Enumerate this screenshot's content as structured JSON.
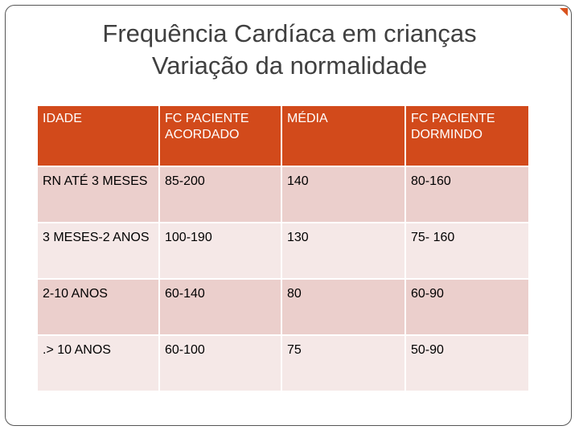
{
  "slide": {
    "title_line1": "Frequência Cardíaca em crianças",
    "title_line2": "Variação da normalidade",
    "accent_color": "#d24a1b"
  },
  "table": {
    "headers": [
      "IDADE",
      "FC PACIENTE ACORDADO",
      "MÉDIA",
      "FC PACIENTE DORMINDO"
    ],
    "rows": [
      [
        "RN ATÉ 3 MESES",
        "85-200",
        "140",
        "80-160"
      ],
      [
        "3 MESES-2 ANOS",
        "100-190",
        "130",
        "75- 160"
      ],
      [
        "2-10 ANOS",
        "60-140",
        "80",
        "60-90"
      ],
      [
        ".> 10 ANOS",
        "60-100",
        "75",
        "50-90"
      ]
    ]
  }
}
